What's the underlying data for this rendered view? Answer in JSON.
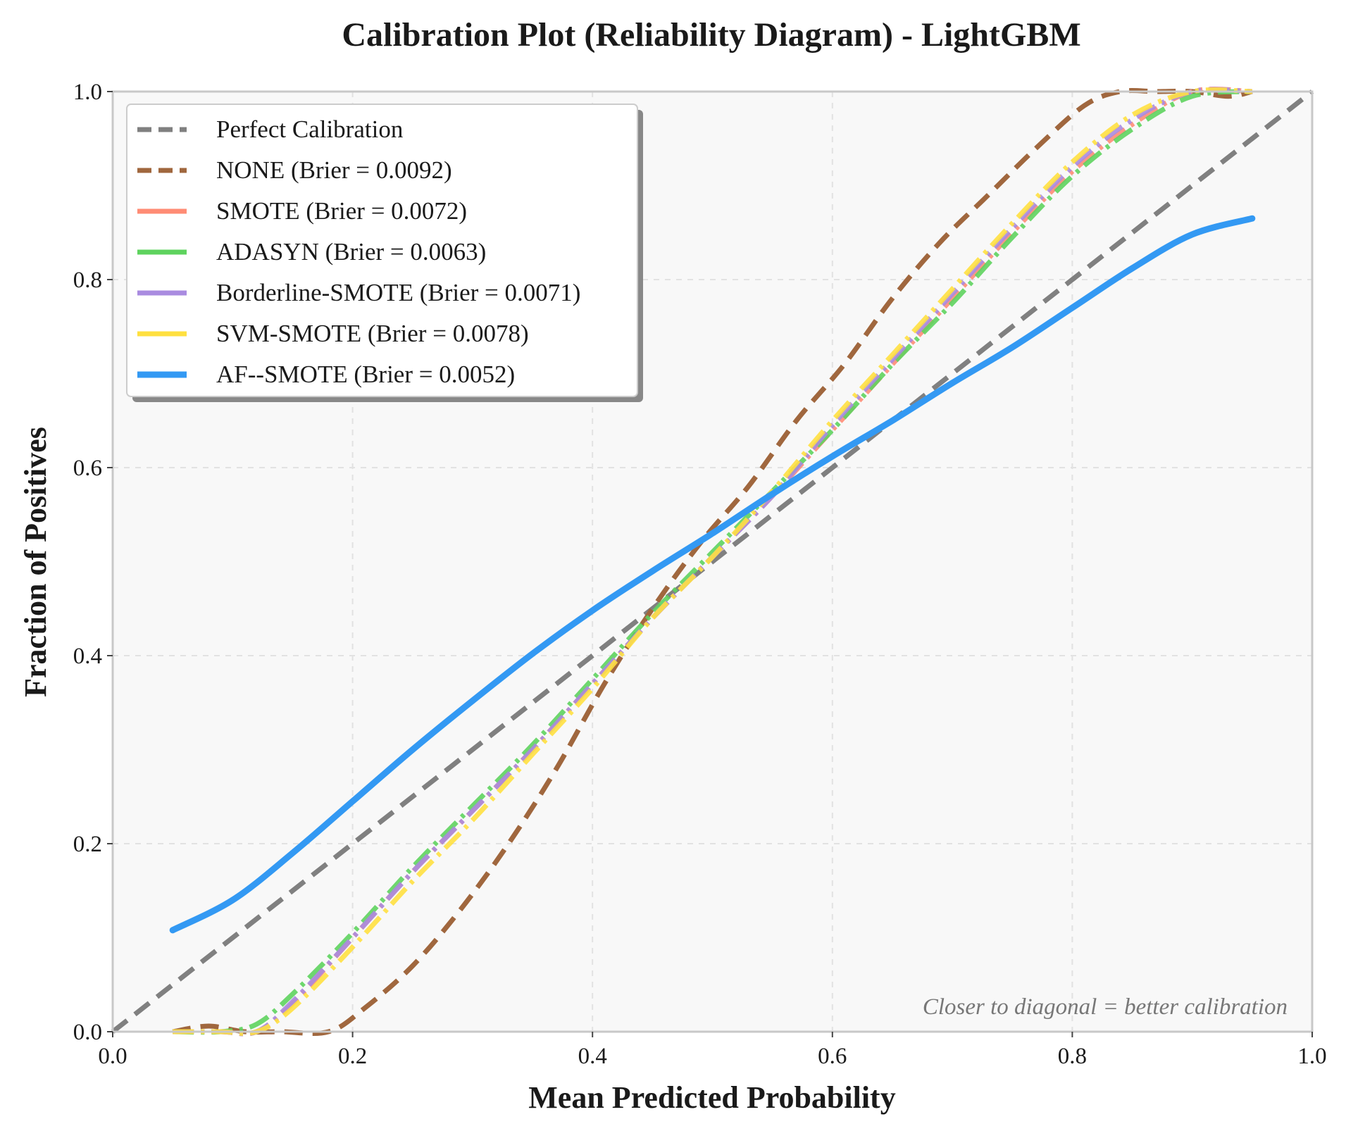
{
  "chart_data": {
    "type": "line",
    "title": "Calibration Plot (Reliability Diagram) - LightGBM",
    "xlabel": "Mean Predicted Probability",
    "ylabel": "Fraction of Positives",
    "xlim": [
      0.0,
      1.0
    ],
    "ylim": [
      0.0,
      1.0
    ],
    "xticks": [
      0.0,
      0.2,
      0.4,
      0.6,
      0.8,
      1.0
    ],
    "yticks": [
      0.0,
      0.2,
      0.4,
      0.6,
      0.8,
      1.0
    ],
    "xtick_labels": [
      "0.0",
      "0.2",
      "0.4",
      "0.6",
      "0.8",
      "1.0"
    ],
    "ytick_labels": [
      "0.0",
      "0.2",
      "0.4",
      "0.6",
      "0.8",
      "1.0"
    ],
    "grid": true,
    "legend_position": "top-left",
    "annotation": "Closer to diagonal = better calibration",
    "series": [
      {
        "name": "Perfect Calibration",
        "color": "#808080",
        "style": "dashed",
        "x": [
          0.0,
          1.0
        ],
        "y": [
          0.0,
          1.0
        ]
      },
      {
        "name": "NONE (Brier = 0.0092)",
        "color": "#A0673E",
        "style": "dashed",
        "x": [
          0.05,
          0.08,
          0.11,
          0.14,
          0.18,
          0.21,
          0.25,
          0.29,
          0.33,
          0.37,
          0.41,
          0.45,
          0.49,
          0.53,
          0.57,
          0.61,
          0.65,
          0.69,
          0.73,
          0.77,
          0.81,
          0.84,
          0.87,
          0.9,
          0.93,
          0.95
        ],
        "y": [
          0.0,
          0.006,
          0.0,
          0.0,
          0.0,
          0.025,
          0.07,
          0.13,
          0.2,
          0.28,
          0.37,
          0.45,
          0.52,
          0.58,
          0.65,
          0.71,
          0.78,
          0.84,
          0.89,
          0.94,
          0.985,
          1.0,
          1.0,
          1.0,
          0.995,
          1.0
        ]
      },
      {
        "name": "SMOTE (Brier = 0.0072)",
        "color": "#FF8C75",
        "style": "dashdot",
        "x": [
          0.05,
          0.09,
          0.12,
          0.15,
          0.2,
          0.25,
          0.3,
          0.35,
          0.4,
          0.45,
          0.5,
          0.55,
          0.6,
          0.65,
          0.7,
          0.75,
          0.8,
          0.85,
          0.9,
          0.95
        ],
        "y": [
          0.0,
          0.0,
          0.0,
          0.03,
          0.1,
          0.17,
          0.235,
          0.3,
          0.37,
          0.44,
          0.505,
          0.57,
          0.64,
          0.71,
          0.78,
          0.85,
          0.915,
          0.965,
          1.0,
          1.0
        ]
      },
      {
        "name": "ADASYN (Brier = 0.0063)",
        "color": "#5ED35E",
        "style": "dashdot",
        "x": [
          0.05,
          0.09,
          0.12,
          0.15,
          0.2,
          0.25,
          0.3,
          0.35,
          0.4,
          0.45,
          0.5,
          0.55,
          0.6,
          0.65,
          0.7,
          0.75,
          0.8,
          0.85,
          0.9,
          0.95
        ],
        "y": [
          0.0,
          0.0,
          0.008,
          0.04,
          0.105,
          0.175,
          0.24,
          0.305,
          0.375,
          0.445,
          0.51,
          0.575,
          0.64,
          0.71,
          0.775,
          0.845,
          0.91,
          0.96,
          0.995,
          1.0
        ]
      },
      {
        "name": "Borderline-SMOTE (Brier = 0.0071)",
        "color": "#A98BE0",
        "style": "dashdot",
        "x": [
          0.05,
          0.09,
          0.12,
          0.15,
          0.2,
          0.25,
          0.3,
          0.35,
          0.4,
          0.45,
          0.5,
          0.55,
          0.6,
          0.65,
          0.7,
          0.75,
          0.8,
          0.85,
          0.9,
          0.95
        ],
        "y": [
          0.0,
          0.0,
          0.0,
          0.032,
          0.1,
          0.17,
          0.235,
          0.3,
          0.37,
          0.44,
          0.505,
          0.57,
          0.645,
          0.715,
          0.785,
          0.855,
          0.92,
          0.97,
          1.0,
          1.0
        ]
      },
      {
        "name": "SVM-SMOTE (Brier = 0.0078)",
        "color": "#FFE040",
        "style": "dashdot",
        "x": [
          0.05,
          0.09,
          0.12,
          0.15,
          0.2,
          0.25,
          0.3,
          0.35,
          0.4,
          0.45,
          0.5,
          0.55,
          0.6,
          0.65,
          0.7,
          0.75,
          0.8,
          0.85,
          0.9,
          0.95
        ],
        "y": [
          0.0,
          0.0,
          0.0,
          0.025,
          0.09,
          0.16,
          0.225,
          0.295,
          0.365,
          0.44,
          0.505,
          0.575,
          0.65,
          0.72,
          0.79,
          0.86,
          0.925,
          0.975,
          1.0,
          1.0
        ]
      },
      {
        "name": "AF--SMOTE (Brier = 0.0052)",
        "color": "#3399F3",
        "style": "solid",
        "x": [
          0.05,
          0.1,
          0.15,
          0.2,
          0.25,
          0.3,
          0.35,
          0.4,
          0.45,
          0.5,
          0.55,
          0.6,
          0.65,
          0.7,
          0.75,
          0.8,
          0.85,
          0.9,
          0.95
        ],
        "y": [
          0.108,
          0.14,
          0.19,
          0.245,
          0.3,
          0.352,
          0.402,
          0.448,
          0.49,
          0.53,
          0.572,
          0.612,
          0.65,
          0.69,
          0.728,
          0.77,
          0.812,
          0.848,
          0.865
        ]
      }
    ]
  }
}
